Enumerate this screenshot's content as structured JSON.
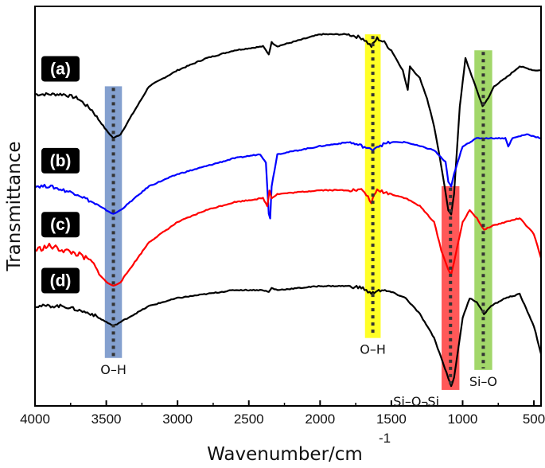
{
  "chart_data": {
    "type": "line",
    "title": "",
    "xlabel": "Wavenumber/cm",
    "xlabel_superscript": "-1",
    "ylabel": "Transmittance",
    "xlim": [
      4000,
      450
    ],
    "x_ticks": [
      4000,
      3500,
      3000,
      2500,
      2000,
      1500,
      1000,
      500
    ],
    "x_tick_labels": [
      "4000",
      "3500",
      "3000",
      "2500",
      "2000",
      "1500",
      "1000",
      "500"
    ],
    "y_ticks_shown": false,
    "series": [
      {
        "name": "(a)",
        "color": "#000000",
        "offset": 0.78,
        "points": [
          [
            4000,
            0.0
          ],
          [
            3900,
            0.0
          ],
          [
            3800,
            0.0
          ],
          [
            3700,
            -0.01
          ],
          [
            3600,
            -0.04
          ],
          [
            3500,
            -0.09
          ],
          [
            3450,
            -0.11
          ],
          [
            3400,
            -0.1
          ],
          [
            3300,
            -0.04
          ],
          [
            3200,
            0.02
          ],
          [
            3000,
            0.06
          ],
          [
            2800,
            0.09
          ],
          [
            2600,
            0.11
          ],
          [
            2400,
            0.12
          ],
          [
            2360,
            0.1
          ],
          [
            2340,
            0.13
          ],
          [
            2300,
            0.12
          ],
          [
            2000,
            0.15
          ],
          [
            1800,
            0.15
          ],
          [
            1700,
            0.14
          ],
          [
            1640,
            0.12
          ],
          [
            1600,
            0.14
          ],
          [
            1550,
            0.13
          ],
          [
            1500,
            0.11
          ],
          [
            1420,
            0.06
          ],
          [
            1385,
            0.01
          ],
          [
            1370,
            0.07
          ],
          [
            1300,
            0.04
          ],
          [
            1250,
            -0.01
          ],
          [
            1200,
            -0.08
          ],
          [
            1150,
            -0.18
          ],
          [
            1100,
            -0.29
          ],
          [
            1080,
            -0.3
          ],
          [
            1060,
            -0.25
          ],
          [
            1020,
            -0.03
          ],
          [
            980,
            0.09
          ],
          [
            950,
            0.06
          ],
          [
            900,
            0.01
          ],
          [
            860,
            -0.03
          ],
          [
            820,
            -0.01
          ],
          [
            780,
            0.02
          ],
          [
            700,
            0.04
          ],
          [
            600,
            0.07
          ],
          [
            500,
            0.06
          ],
          [
            450,
            0.06
          ]
        ]
      },
      {
        "name": "(b)",
        "color": "#0000ff",
        "offset": 0.55,
        "points": [
          [
            4000,
            0.0
          ],
          [
            3900,
            0.0
          ],
          [
            3800,
            -0.01
          ],
          [
            3700,
            -0.02
          ],
          [
            3600,
            -0.04
          ],
          [
            3500,
            -0.06
          ],
          [
            3450,
            -0.07
          ],
          [
            3400,
            -0.06
          ],
          [
            3300,
            -0.03
          ],
          [
            3200,
            0.0
          ],
          [
            3000,
            0.03
          ],
          [
            2800,
            0.05
          ],
          [
            2600,
            0.07
          ],
          [
            2420,
            0.08
          ],
          [
            2380,
            0.06
          ],
          [
            2360,
            -0.07
          ],
          [
            2350,
            -0.08
          ],
          [
            2340,
            0.0
          ],
          [
            2300,
            0.08
          ],
          [
            2000,
            0.1
          ],
          [
            1800,
            0.11
          ],
          [
            1700,
            0.1
          ],
          [
            1640,
            0.09
          ],
          [
            1600,
            0.1
          ],
          [
            1500,
            0.11
          ],
          [
            1400,
            0.11
          ],
          [
            1300,
            0.1
          ],
          [
            1200,
            0.09
          ],
          [
            1120,
            0.06
          ],
          [
            1100,
            0.01
          ],
          [
            1080,
            0.0
          ],
          [
            1060,
            0.03
          ],
          [
            1000,
            0.1
          ],
          [
            900,
            0.12
          ],
          [
            800,
            0.12
          ],
          [
            700,
            0.12
          ],
          [
            680,
            0.1
          ],
          [
            650,
            0.12
          ],
          [
            550,
            0.13
          ],
          [
            450,
            0.12
          ]
        ]
      },
      {
        "name": "(c)",
        "color": "#ff0000",
        "offset": 0.39,
        "points": [
          [
            4000,
            0.0
          ],
          [
            3900,
            0.01
          ],
          [
            3800,
            0.0
          ],
          [
            3700,
            -0.01
          ],
          [
            3600,
            -0.03
          ],
          [
            3550,
            -0.06
          ],
          [
            3500,
            -0.08
          ],
          [
            3450,
            -0.09
          ],
          [
            3400,
            -0.08
          ],
          [
            3300,
            -0.03
          ],
          [
            3200,
            0.02
          ],
          [
            3000,
            0.07
          ],
          [
            2800,
            0.1
          ],
          [
            2600,
            0.12
          ],
          [
            2400,
            0.13
          ],
          [
            2370,
            0.11
          ],
          [
            2355,
            0.15
          ],
          [
            2340,
            0.13
          ],
          [
            2300,
            0.14
          ],
          [
            2000,
            0.15
          ],
          [
            1800,
            0.15
          ],
          [
            1700,
            0.15
          ],
          [
            1640,
            0.12
          ],
          [
            1600,
            0.15
          ],
          [
            1500,
            0.14
          ],
          [
            1400,
            0.13
          ],
          [
            1300,
            0.11
          ],
          [
            1200,
            0.07
          ],
          [
            1150,
            0.0
          ],
          [
            1100,
            -0.05
          ],
          [
            1080,
            -0.06
          ],
          [
            1060,
            -0.03
          ],
          [
            1000,
            0.07
          ],
          [
            950,
            0.1
          ],
          [
            900,
            0.08
          ],
          [
            850,
            0.05
          ],
          [
            800,
            0.06
          ],
          [
            700,
            0.07
          ],
          [
            600,
            0.08
          ],
          [
            500,
            0.04
          ],
          [
            450,
            -0.02
          ]
        ]
      },
      {
        "name": "(d)",
        "color": "#000000",
        "offset": 0.25,
        "points": [
          [
            4000,
            0.0
          ],
          [
            3900,
            0.0
          ],
          [
            3800,
            0.0
          ],
          [
            3700,
            -0.01
          ],
          [
            3600,
            -0.02
          ],
          [
            3500,
            -0.04
          ],
          [
            3450,
            -0.05
          ],
          [
            3400,
            -0.04
          ],
          [
            3300,
            -0.02
          ],
          [
            3200,
            0.0
          ],
          [
            3000,
            0.02
          ],
          [
            2800,
            0.03
          ],
          [
            2600,
            0.04
          ],
          [
            2400,
            0.04
          ],
          [
            2360,
            0.035
          ],
          [
            2340,
            0.045
          ],
          [
            2300,
            0.04
          ],
          [
            2000,
            0.05
          ],
          [
            1800,
            0.05
          ],
          [
            1700,
            0.045
          ],
          [
            1640,
            0.03
          ],
          [
            1600,
            0.04
          ],
          [
            1500,
            0.035
          ],
          [
            1400,
            0.02
          ],
          [
            1300,
            -0.02
          ],
          [
            1200,
            -0.08
          ],
          [
            1150,
            -0.13
          ],
          [
            1100,
            -0.18
          ],
          [
            1080,
            -0.2
          ],
          [
            1060,
            -0.18
          ],
          [
            1000,
            -0.03
          ],
          [
            950,
            0.02
          ],
          [
            900,
            0.01
          ],
          [
            850,
            -0.02
          ],
          [
            800,
            0.0
          ],
          [
            700,
            0.02
          ],
          [
            600,
            0.03
          ],
          [
            500,
            -0.05
          ],
          [
            450,
            -0.12
          ]
        ]
      }
    ],
    "highlight_bands": [
      {
        "label": "O–H",
        "center": 3450,
        "width": 120,
        "color": "#6e8fc7",
        "y_from": 0.8,
        "y_to": 0.12,
        "label_position": "bottom"
      },
      {
        "label": "O–H",
        "center": 1630,
        "width": 110,
        "color": "#ffff00",
        "y_from": 0.93,
        "y_to": 0.17,
        "label_position": "bottom"
      },
      {
        "label": "Si–O–Si",
        "center": 1085,
        "width": 125,
        "color": "#ff3b3b",
        "y_from": 0.55,
        "y_to": 0.04,
        "label_position": "bottom-left"
      },
      {
        "label": "Si–O",
        "center": 855,
        "width": 125,
        "color": "#92d050",
        "y_from": 0.89,
        "y_to": 0.09,
        "label_position": "bottom"
      }
    ],
    "panel_labels": [
      "(a)",
      "(b)",
      "(c)",
      "(d)"
    ],
    "grid": false,
    "legend": "panel labels at left"
  }
}
